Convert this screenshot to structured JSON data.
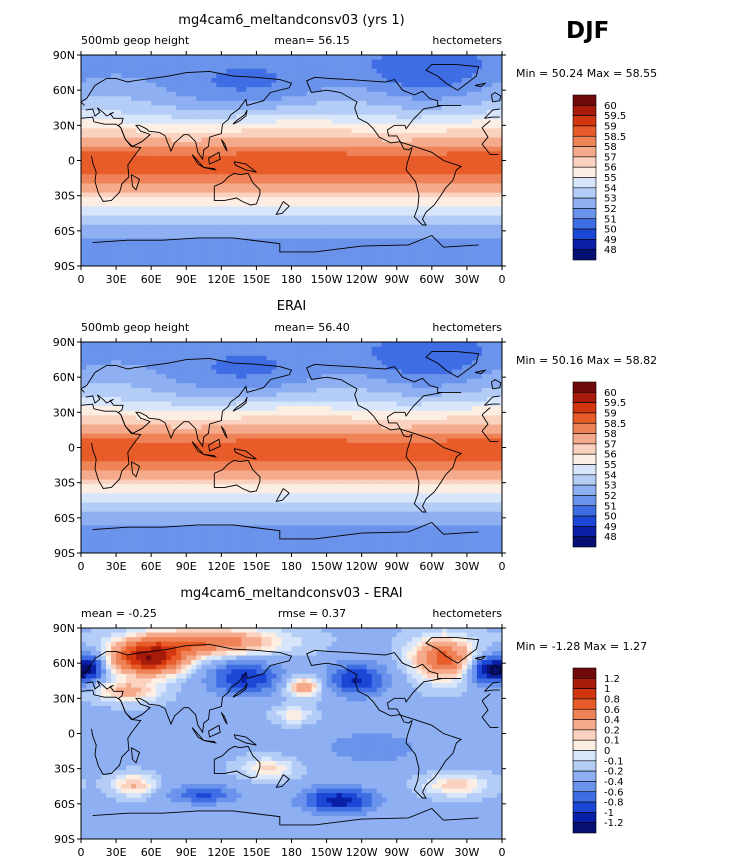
{
  "figure": {
    "season": "DJF"
  },
  "chart_data": [
    {
      "type": "heatmap",
      "title": "mg4cam6_meltandconsv03 (yrs 1)",
      "left_label": "500mb geop height",
      "center_label": "mean=  56.15",
      "right_label": "hectometers",
      "stats": "Min =  50.24 Max =  58.55",
      "x_ticks": [
        "0",
        "30E",
        "60E",
        "90E",
        "120E",
        "150E",
        "180",
        "150W",
        "120W",
        "90W",
        "60W",
        "30W",
        "0"
      ],
      "y_ticks": [
        "90N",
        "60N",
        "30N",
        "0",
        "30S",
        "60S",
        "90S"
      ],
      "colorbar_labels": [
        "60",
        "59.5",
        "59",
        "58.5",
        "58",
        "57",
        "56",
        "55",
        "54",
        "53",
        "52",
        "51",
        "50",
        "49",
        "48"
      ],
      "colors": [
        "#6e0a0a",
        "#a81a0a",
        "#d2360f",
        "#e85c2a",
        "#ef8358",
        "#f5aa8c",
        "#fbd2bf",
        "#fdeee3",
        "#d8e6fb",
        "#b4cdf7",
        "#8eb0f2",
        "#6a93eb",
        "#3f6de4",
        "#1c47d6",
        "#0a1fa8",
        "#061070"
      ],
      "field": "mean",
      "mean": 56.15,
      "min": 50.24,
      "max": 58.55
    },
    {
      "type": "heatmap",
      "title": "ERAI",
      "left_label": "500mb geop height",
      "center_label": "mean=  56.40",
      "right_label": "hectometers",
      "stats": "Min =  50.16 Max =  58.82",
      "x_ticks": [
        "0",
        "30E",
        "60E",
        "90E",
        "120E",
        "150E",
        "180",
        "150W",
        "120W",
        "90W",
        "60W",
        "30W",
        "0"
      ],
      "y_ticks": [
        "90N",
        "60N",
        "30N",
        "0",
        "30S",
        "60S",
        "90S"
      ],
      "colorbar_labels": [
        "60",
        "59.5",
        "59",
        "58.5",
        "58",
        "57",
        "56",
        "55",
        "54",
        "53",
        "52",
        "51",
        "50",
        "49",
        "48"
      ],
      "colors": [
        "#6e0a0a",
        "#a81a0a",
        "#d2360f",
        "#e85c2a",
        "#ef8358",
        "#f5aa8c",
        "#fbd2bf",
        "#fdeee3",
        "#d8e6fb",
        "#b4cdf7",
        "#8eb0f2",
        "#6a93eb",
        "#3f6de4",
        "#1c47d6",
        "#0a1fa8",
        "#061070"
      ],
      "field": "mean",
      "mean": 56.4,
      "min": 50.16,
      "max": 58.82
    },
    {
      "type": "heatmap",
      "title": "mg4cam6_meltandconsv03 - ERAI",
      "left_label": "mean =   -0.25",
      "center_label": "rmse =    0.37",
      "right_label": "hectometers",
      "stats": "Min =  -1.28 Max =    1.27",
      "x_ticks": [
        "0",
        "30E",
        "60E",
        "90E",
        "120E",
        "150E",
        "180",
        "150W",
        "120W",
        "90W",
        "60W",
        "30W",
        "0"
      ],
      "y_ticks": [
        "90N",
        "60N",
        "30N",
        "0",
        "30S",
        "60S",
        "90S"
      ],
      "colorbar_labels": [
        "1.2",
        "1",
        "0.8",
        "0.6",
        "0.4",
        "0.2",
        "0.1",
        "0",
        "-0.1",
        "-0.2",
        "-0.4",
        "-0.6",
        "-0.8",
        "-1",
        "-1.2"
      ],
      "colors": [
        "#6e0a0a",
        "#a81a0a",
        "#d2360f",
        "#e85c2a",
        "#ef8358",
        "#f5aa8c",
        "#fbd2bf",
        "#fdeee3",
        "#d8e6fb",
        "#b4cdf7",
        "#8eb0f2",
        "#6a93eb",
        "#3f6de4",
        "#1c47d6",
        "#0a1fa8",
        "#061070"
      ],
      "field": "diff",
      "mean": -0.25,
      "rmse": 0.37,
      "min": -1.28,
      "max": 1.27
    }
  ]
}
